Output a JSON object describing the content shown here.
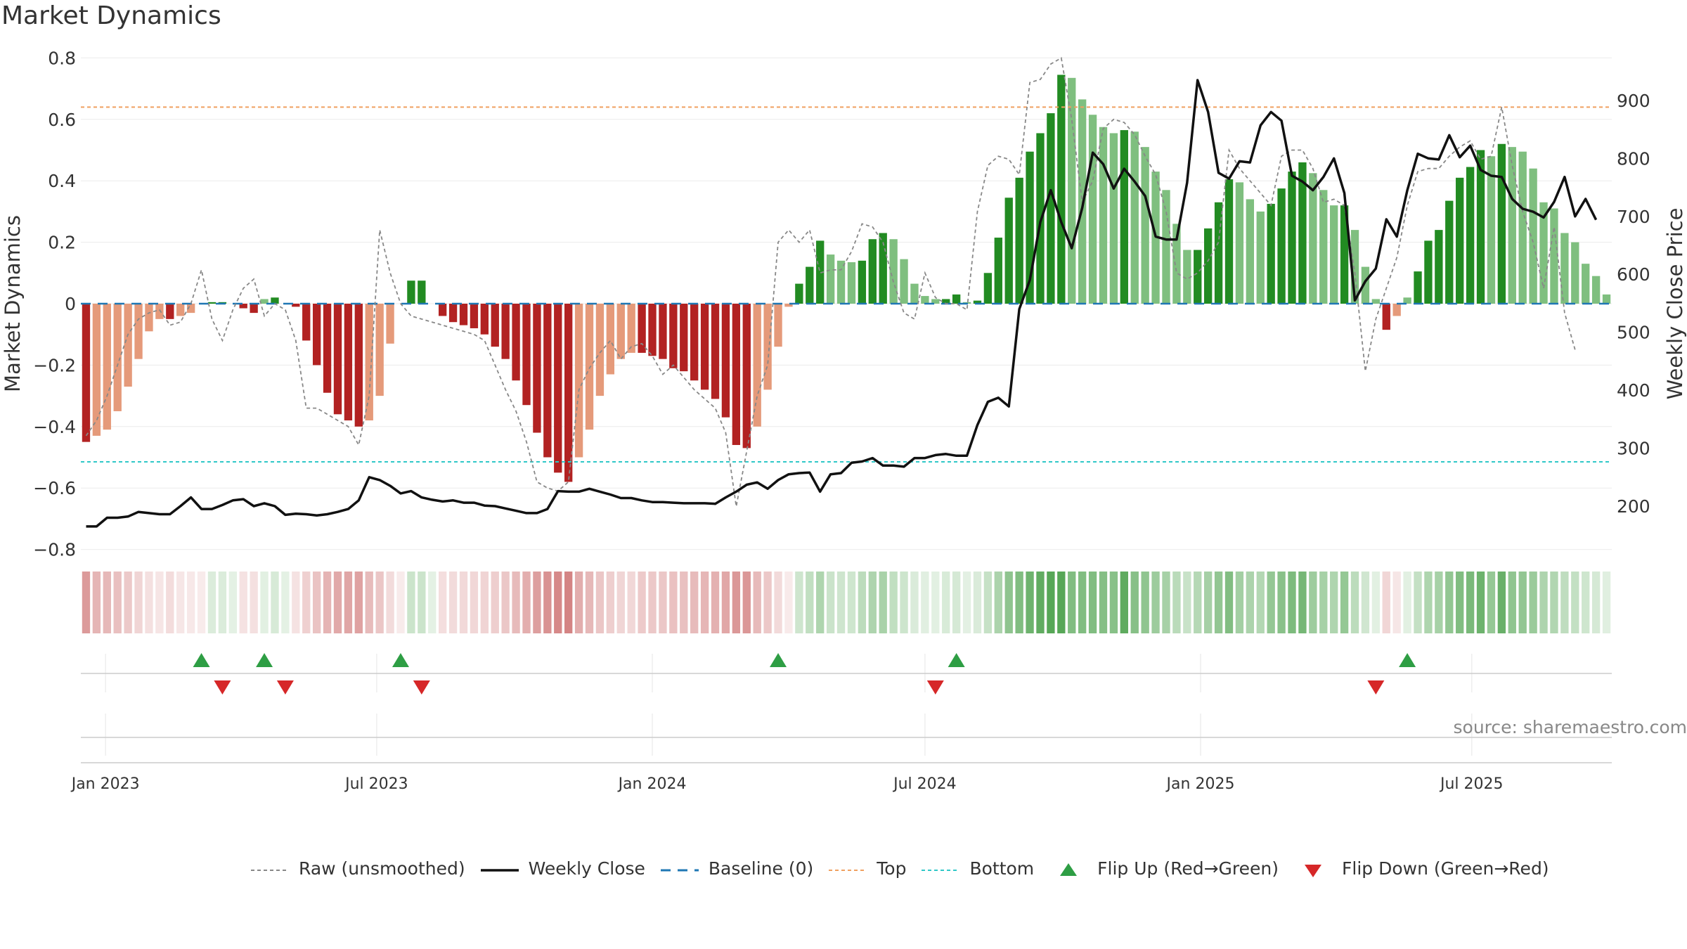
{
  "chart_data": {
    "type": "bar",
    "title": "Market Dynamics",
    "ylabel": "Market Dynamics",
    "y2label": "Weekly Close Price",
    "ylim": [
      -0.85,
      0.8
    ],
    "y2lim": [
      110,
      1000
    ],
    "yticks": [
      "0.8",
      "0.6",
      "0.4",
      "0.2",
      "0",
      "−0.2",
      "−0.4",
      "−0.6",
      "−0.8"
    ],
    "y2ticks": [
      "900",
      "800",
      "700",
      "600",
      "500",
      "400",
      "300",
      "200"
    ],
    "xticks": [
      "Jan 2023",
      "Jul 2023",
      "Jan 2024",
      "Jul 2024",
      "Jan 2025",
      "Jul 2025"
    ],
    "start_date": "2022-12-19",
    "top_level": 0.64,
    "bottom_level": -0.515,
    "baseline": 0,
    "bars": [
      -0.45,
      -0.43,
      -0.41,
      -0.35,
      -0.27,
      -0.18,
      -0.09,
      -0.05,
      -0.05,
      -0.04,
      -0.03,
      0,
      0.005,
      0.005,
      0,
      -0.015,
      -0.03,
      0.015,
      0.02,
      0,
      -0.01,
      -0.12,
      -0.2,
      -0.29,
      -0.36,
      -0.38,
      -0.4,
      -0.38,
      -0.3,
      -0.13,
      0,
      0.075,
      0.075,
      0,
      -0.04,
      -0.06,
      -0.07,
      -0.08,
      -0.1,
      -0.14,
      -0.18,
      -0.25,
      -0.33,
      -0.42,
      -0.5,
      -0.55,
      -0.58,
      -0.5,
      -0.41,
      -0.3,
      -0.23,
      -0.18,
      -0.16,
      -0.16,
      -0.17,
      -0.18,
      -0.21,
      -0.22,
      -0.25,
      -0.28,
      -0.31,
      -0.37,
      -0.46,
      -0.47,
      -0.4,
      -0.28,
      -0.14,
      -0.01,
      0.065,
      0.12,
      0.205,
      0.16,
      0.14,
      0.135,
      0.14,
      0.21,
      0.23,
      0.21,
      0.145,
      0.065,
      0.025,
      0.015,
      0.015,
      0.03,
      0.005,
      0.01,
      0.1,
      0.215,
      0.345,
      0.41,
      0.495,
      0.555,
      0.62,
      0.745,
      0.735,
      0.665,
      0.615,
      0.575,
      0.555,
      0.565,
      0.56,
      0.51,
      0.43,
      0.37,
      0.26,
      0.175,
      0.175,
      0.245,
      0.33,
      0.405,
      0.395,
      0.34,
      0.3,
      0.325,
      0.375,
      0.43,
      0.46,
      0.425,
      0.37,
      0.32,
      0.32,
      0.24,
      0.12,
      0.015,
      -0.085,
      -0.04,
      0.02,
      0.105,
      0.205,
      0.24,
      0.335,
      0.41,
      0.445,
      0.5,
      0.48,
      0.52,
      0.51,
      0.495,
      0.44,
      0.33,
      0.31,
      0.23,
      0.2,
      0.13,
      0.09,
      0.03
    ],
    "raw": [
      -0.43,
      -0.38,
      -0.3,
      -0.2,
      -0.1,
      -0.05,
      -0.03,
      -0.02,
      -0.07,
      -0.06,
      0,
      0.11,
      -0.05,
      -0.12,
      -0.02,
      0.05,
      0.08,
      -0.04,
      0,
      -0.02,
      -0.12,
      -0.34,
      -0.34,
      -0.36,
      -0.38,
      -0.4,
      -0.46,
      -0.3,
      0.24,
      0.1,
      0,
      -0.04,
      -0.05,
      -0.06,
      -0.07,
      -0.08,
      -0.09,
      -0.1,
      -0.12,
      -0.2,
      -0.28,
      -0.35,
      -0.45,
      -0.58,
      -0.6,
      -0.61,
      -0.58,
      -0.28,
      -0.21,
      -0.16,
      -0.12,
      -0.18,
      -0.14,
      -0.13,
      -0.17,
      -0.23,
      -0.2,
      -0.24,
      -0.28,
      -0.31,
      -0.34,
      -0.42,
      -0.66,
      -0.48,
      -0.3,
      -0.2,
      0.2,
      0.24,
      0.2,
      0.24,
      0.1,
      0.11,
      0.11,
      0.17,
      0.26,
      0.25,
      0.2,
      0.07,
      -0.03,
      -0.05,
      0.1,
      0.02,
      0,
      0,
      -0.02,
      0.3,
      0.45,
      0.48,
      0.47,
      0.42,
      0.72,
      0.73,
      0.78,
      0.8,
      0.6,
      0.33,
      0.4,
      0.57,
      0.6,
      0.59,
      0.55,
      0.48,
      0.42,
      0.3,
      0.1,
      0.08,
      0.1,
      0.14,
      0.2,
      0.5,
      0.44,
      0.4,
      0.36,
      0.32,
      0.48,
      0.5,
      0.5,
      0.44,
      0.33,
      0.34,
      0.32,
      0.1,
      -0.22,
      -0.05,
      0.05,
      0.15,
      0.32,
      0.43,
      0.44,
      0.44,
      0.48,
      0.51,
      0.53,
      0.47,
      0.48,
      0.64,
      0.45,
      0.3,
      0.2,
      0.05,
      0.25,
      -0.03,
      -0.15
    ],
    "price": [
      165,
      165,
      180,
      180,
      182,
      190,
      188,
      186,
      186,
      200,
      215,
      195,
      195,
      202,
      210,
      212,
      200,
      205,
      200,
      185,
      187,
      186,
      184,
      186,
      190,
      195,
      210,
      250,
      245,
      235,
      222,
      226,
      215,
      211,
      208,
      210,
      206,
      206,
      201,
      200,
      196,
      192,
      188,
      188,
      195,
      226,
      225,
      225,
      230,
      225,
      220,
      214,
      214,
      210,
      207,
      207,
      206,
      205,
      205,
      205,
      204,
      215,
      225,
      237,
      241,
      230,
      245,
      255,
      257,
      258,
      225,
      255,
      257,
      275,
      277,
      283,
      270,
      270,
      268,
      283,
      283,
      288,
      290,
      287,
      287,
      340,
      380,
      387,
      372,
      540,
      590,
      690,
      745,
      690,
      645,
      715,
      810,
      790,
      748,
      782,
      760,
      735,
      665,
      660,
      660,
      758,
      935,
      880,
      775,
      765,
      795,
      793,
      857,
      880,
      865,
      770,
      760,
      745,
      768,
      800,
      740,
      555,
      588,
      610,
      695,
      665,
      745,
      808,
      800,
      798,
      840,
      802,
      822,
      780,
      770,
      768,
      730,
      713,
      708,
      698,
      725,
      768,
      700,
      730,
      694
    ],
    "flips_up": [
      "2023-03-06",
      "2023-04-17",
      "2023-07-17",
      "2024-03-25",
      "2024-07-22",
      "2025-05-19"
    ],
    "flips_down": [
      "2023-03-20",
      "2023-05-01",
      "2023-07-31",
      "2024-07-08",
      "2025-04-28"
    ],
    "colors": {
      "neg_strong": "#b22222",
      "neg_light": "#e59a7a",
      "pos_strong": "#228b22",
      "pos_light": "#7fbf7f",
      "raw": "#888888",
      "close": "#111111",
      "baseline": "#1f77b4",
      "top": "#f0a060",
      "bottom": "#30c8c8",
      "flip_up": "#2e9e44",
      "flip_down": "#d62728"
    },
    "legend": [
      {
        "label": "Raw (unsmoothed)",
        "style": "raw"
      },
      {
        "label": "Weekly Close",
        "style": "close"
      },
      {
        "label": "Baseline (0)",
        "style": "baseline"
      },
      {
        "label": "Top",
        "style": "top"
      },
      {
        "label": "Bottom",
        "style": "bottom"
      },
      {
        "label": "Flip Up (Red→Green)",
        "style": "flip_up"
      },
      {
        "label": "Flip Down (Green→Red)",
        "style": "flip_down"
      }
    ],
    "legend_position": "bottom",
    "source": "source: sharemaestro.com"
  }
}
